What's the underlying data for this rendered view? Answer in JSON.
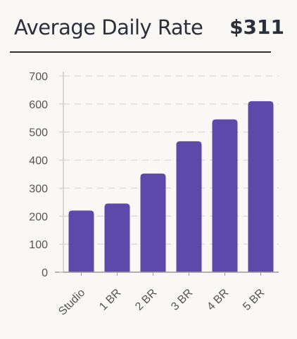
{
  "header": {
    "title": "Average Daily Rate",
    "value": "$311"
  },
  "colors": {
    "bar": "#5b4aaa",
    "grid": "#dddddd",
    "axis": "#999999",
    "background": "#f9f8f5"
  },
  "chart_data": {
    "type": "bar",
    "title": "",
    "xlabel": "",
    "ylabel": "",
    "categories": [
      "Studio",
      "1 BR",
      "2 BR",
      "3 BR",
      "4 BR",
      "5 BR"
    ],
    "values": [
      220,
      245,
      352,
      467,
      545,
      610
    ],
    "ylim": [
      0,
      700
    ],
    "yticks": [
      0,
      100,
      200,
      300,
      400,
      500,
      600,
      700
    ],
    "grid": true,
    "legend": "none"
  }
}
